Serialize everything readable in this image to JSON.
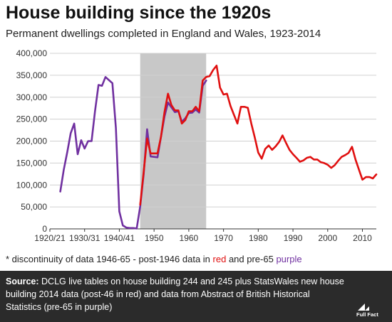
{
  "title": "House building since the 1920s",
  "subtitle": "Permanent dwellings completed in England and Wales, 1923-2014",
  "footnote": {
    "prefix": "* discontinuity of data 1946-65 - post-1946 data in ",
    "red_word": "red",
    "middle": " and pre-65 ",
    "purple_word": "purple"
  },
  "source": {
    "label": "Source:",
    "text": " DCLG live tables on house building 244 and 245 plus StatsWales new house building 2014 data (post-46 in red) and data from Abstract of British Historical Statistics (pre-65 in purple)"
  },
  "logo": {
    "text": "Full Fact"
  },
  "colors": {
    "red": "#e01010",
    "purple": "#7030a0",
    "shade": "#c8c8c8",
    "source_bg": "#2b2b2b"
  },
  "chart_data": {
    "type": "line",
    "title": "House building since the 1920s",
    "subtitle": "Permanent dwellings completed in England and Wales, 1923-2014",
    "xlim": [
      1920,
      2014
    ],
    "ylim": [
      0,
      400000
    ],
    "grid": "horizontal",
    "x_tick_values": [
      1920,
      1930,
      1940,
      1950,
      1960,
      1970,
      1980,
      1990,
      2000,
      2010
    ],
    "x_tick_labels": [
      "1920/21",
      "1930/31",
      "1940/41",
      "1950",
      "1960",
      "1970",
      "1980",
      "1990",
      "2000",
      "2010"
    ],
    "y_tick_values": [
      0,
      50000,
      100000,
      150000,
      200000,
      250000,
      300000,
      350000,
      400000
    ],
    "y_tick_labels": [
      "0",
      "50,000",
      "100,000",
      "150,000",
      "200,000",
      "250,000",
      "300,000",
      "350,000",
      "400,000"
    ],
    "shaded_region": [
      1946,
      1965
    ],
    "series": [
      {
        "name": "pre-65",
        "color": "#7030a0",
        "x": [
          1923,
          1924,
          1925,
          1926,
          1927,
          1928,
          1929,
          1930,
          1931,
          1932,
          1933,
          1934,
          1935,
          1936,
          1937,
          1938,
          1939,
          1940,
          1941,
          1942,
          1943,
          1944,
          1945,
          1946,
          1947,
          1948,
          1949,
          1950,
          1951,
          1952,
          1953,
          1954,
          1955,
          1956,
          1957,
          1958,
          1959,
          1960,
          1961,
          1962,
          1963,
          1964,
          1965
        ],
        "y": [
          85000,
          135000,
          175000,
          218000,
          240000,
          170000,
          202000,
          183000,
          200000,
          200000,
          268000,
          328000,
          326000,
          346000,
          339000,
          332000,
          230000,
          40000,
          8000,
          3000,
          2000,
          2000,
          1000,
          51000,
          125000,
          227000,
          165000,
          164000,
          163000,
          210000,
          256000,
          288000,
          277000,
          266000,
          268000,
          244000,
          252000,
          264000,
          265000,
          272000,
          265000,
          326000,
          338000
        ]
      },
      {
        "name": "post-1946",
        "color": "#e01010",
        "x": [
          1946,
          1947,
          1948,
          1949,
          1950,
          1951,
          1952,
          1953,
          1954,
          1955,
          1956,
          1957,
          1958,
          1959,
          1960,
          1961,
          1962,
          1963,
          1964,
          1965,
          1966,
          1967,
          1968,
          1969,
          1970,
          1971,
          1972,
          1973,
          1974,
          1975,
          1976,
          1977,
          1978,
          1979,
          1980,
          1981,
          1982,
          1983,
          1984,
          1985,
          1986,
          1987,
          1988,
          1989,
          1990,
          1991,
          1992,
          1993,
          1994,
          1995,
          1996,
          1997,
          1998,
          1999,
          2000,
          2001,
          2002,
          2003,
          2004,
          2005,
          2006,
          2007,
          2008,
          2009,
          2010,
          2011,
          2012,
          2013,
          2014
        ],
        "y": [
          55000,
          130000,
          206000,
          172000,
          172000,
          172000,
          210000,
          266000,
          308000,
          282000,
          270000,
          270000,
          240000,
          248000,
          268000,
          268000,
          278000,
          268000,
          338000,
          346000,
          348000,
          362000,
          372000,
          322000,
          306000,
          308000,
          280000,
          260000,
          240000,
          278000,
          278000,
          276000,
          240000,
          208000,
          174000,
          160000,
          182000,
          190000,
          180000,
          188000,
          198000,
          213000,
          196000,
          180000,
          170000,
          162000,
          153000,
          156000,
          162000,
          164000,
          158000,
          158000,
          152000,
          150000,
          146000,
          139000,
          145000,
          155000,
          164000,
          168000,
          173000,
          187000,
          158000,
          135000,
          112000,
          118000,
          118000,
          115000,
          124000
        ]
      }
    ]
  }
}
